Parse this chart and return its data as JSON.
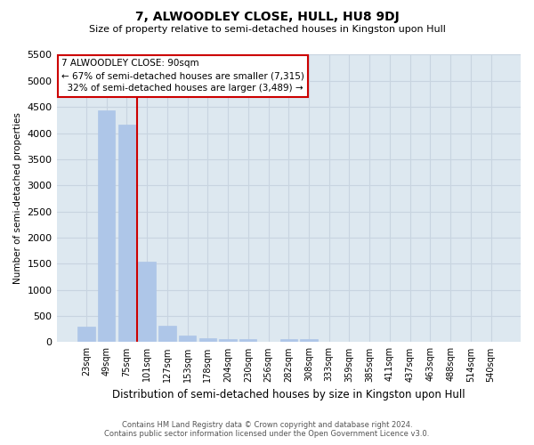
{
  "title": "7, ALWOODLEY CLOSE, HULL, HU8 9DJ",
  "subtitle": "Size of property relative to semi-detached houses in Kingston upon Hull",
  "xlabel": "Distribution of semi-detached houses by size in Kingston upon Hull",
  "ylabel": "Number of semi-detached properties",
  "footer_line1": "Contains HM Land Registry data © Crown copyright and database right 2024.",
  "footer_line2": "Contains public sector information licensed under the Open Government Licence v3.0.",
  "categories": [
    "23sqm",
    "49sqm",
    "75sqm",
    "101sqm",
    "127sqm",
    "153sqm",
    "178sqm",
    "204sqm",
    "230sqm",
    "256sqm",
    "282sqm",
    "308sqm",
    "333sqm",
    "359sqm",
    "385sqm",
    "411sqm",
    "437sqm",
    "463sqm",
    "488sqm",
    "514sqm",
    "540sqm"
  ],
  "values": [
    290,
    4430,
    4170,
    1540,
    320,
    120,
    75,
    65,
    65,
    0,
    65,
    65,
    0,
    0,
    0,
    0,
    0,
    0,
    0,
    0,
    0
  ],
  "bar_color": "#aec6e8",
  "bar_edge_color": "#aec6e8",
  "property_line_color": "#cc0000",
  "property_line_x": 2.5,
  "ylim": [
    0,
    5500
  ],
  "yticks": [
    0,
    500,
    1000,
    1500,
    2000,
    2500,
    3000,
    3500,
    4000,
    4500,
    5000,
    5500
  ],
  "annotation_line1": "7 ALWOODLEY CLOSE: 90sqm",
  "annotation_line2": "← 67% of semi-detached houses are smaller (7,315)",
  "annotation_line3": "  32% of semi-detached houses are larger (3,489) →",
  "annotation_box_color": "#ffffff",
  "annotation_box_edge_color": "#cc0000",
  "grid_color": "#c8d4e0",
  "bg_color": "#ffffff",
  "plot_bg_color": "#dde8f0"
}
